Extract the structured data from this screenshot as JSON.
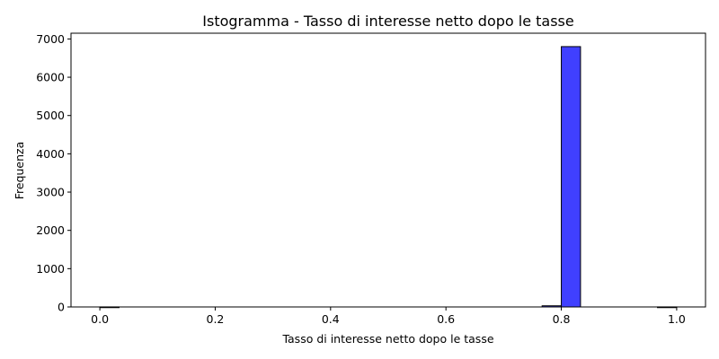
{
  "chart_data": {
    "type": "bar",
    "subtype": "histogram",
    "title": "Istogramma - Tasso di interesse netto dopo le tasse",
    "xlabel": "Tasso di interesse netto dopo le tasse",
    "ylabel": "Frequenza",
    "xlim": [
      -0.05,
      1.05
    ],
    "ylim": [
      0,
      7150
    ],
    "xticks": [
      "0.0",
      "0.2",
      "0.4",
      "0.6",
      "0.8",
      "1.0"
    ],
    "yticks": [
      "0",
      "1000",
      "2000",
      "3000",
      "4000",
      "5000",
      "6000",
      "7000"
    ],
    "bin_width": 0.0333,
    "bins": [
      {
        "x0": 0.0,
        "x1": 0.0333,
        "count": 1
      },
      {
        "x0": 0.7667,
        "x1": 0.8,
        "count": 30
      },
      {
        "x0": 0.8,
        "x1": 0.8333,
        "count": 6800
      },
      {
        "x0": 0.9667,
        "x1": 1.0,
        "count": 1
      }
    ],
    "bar_color": "#0000ff",
    "bar_opacity": 0.75,
    "edge_color": "#000000",
    "grid": false,
    "legend": "none"
  }
}
